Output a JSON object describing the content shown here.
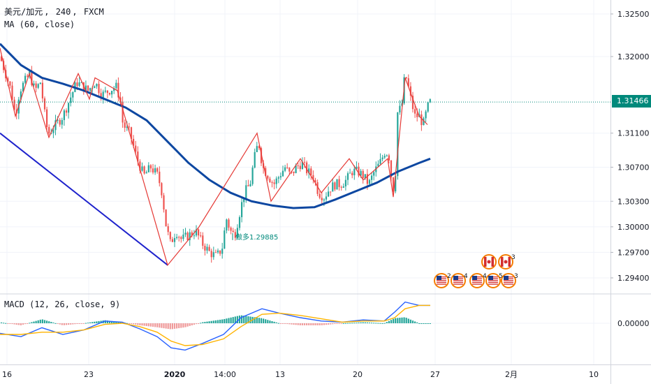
{
  "legend": {
    "symbol": "美元/加元",
    "interval": "240",
    "exchange": "FXCM",
    "ma_label": "MA (60, close)",
    "macd_label": "MACD (12, 26, close, 9)"
  },
  "price_tag": "1.31466",
  "colors": {
    "up": "#26a69a",
    "down": "#ef5350",
    "ma_line": "#0d47a1",
    "zigzag": "#e53935",
    "trendline": "#1e22cc",
    "macd_line": "#2962ff",
    "signal_line": "#ffb300",
    "hist_up": "#26a69a",
    "hist_down": "#ef9a9a",
    "last_price_line": "#00897b"
  },
  "chart_data": [
    {
      "type": "candlestick",
      "panel": "price",
      "y_ticks": [
        "1.32500",
        "1.32000",
        "1.31466",
        "1.31100",
        "1.30700",
        "1.30300",
        "1.30000",
        "1.29700",
        "1.29400"
      ],
      "ylim": [
        1.292,
        1.3275
      ],
      "x_ticks": [
        "16",
        "23",
        "2020",
        "14:00",
        "13",
        "20",
        "27",
        "2月",
        "10"
      ],
      "last_price": 1.31466,
      "annotation": "做多1.29885",
      "annotation_price": 1.29885,
      "close_path": [
        [
          0,
          1.32
        ],
        [
          8,
          1.318
        ],
        [
          16,
          1.316
        ],
        [
          22,
          1.313
        ],
        [
          28,
          1.316
        ],
        [
          35,
          1.317
        ],
        [
          42,
          1.318
        ],
        [
          50,
          1.316
        ],
        [
          58,
          1.317
        ],
        [
          66,
          1.312
        ],
        [
          70,
          1.311
        ],
        [
          80,
          1.312
        ],
        [
          90,
          1.313
        ],
        [
          100,
          1.315
        ],
        [
          110,
          1.317
        ],
        [
          118,
          1.3165
        ],
        [
          126,
          1.316
        ],
        [
          136,
          1.317
        ],
        [
          146,
          1.3155
        ],
        [
          156,
          1.316
        ],
        [
          166,
          1.3165
        ],
        [
          172,
          1.315
        ],
        [
          176,
          1.312
        ],
        [
          186,
          1.311
        ],
        [
          196,
          1.308
        ],
        [
          206,
          1.306
        ],
        [
          216,
          1.307
        ],
        [
          226,
          1.306
        ],
        [
          232,
          1.304
        ],
        [
          238,
          1.3
        ],
        [
          244,
          1.298
        ],
        [
          252,
          1.2995
        ],
        [
          260,
          1.2985
        ],
        [
          270,
          1.299
        ],
        [
          280,
          1.2995
        ],
        [
          290,
          1.298
        ],
        [
          300,
          1.297
        ],
        [
          310,
          1.2965
        ],
        [
          318,
          1.2975
        ],
        [
          324,
          1.301
        ],
        [
          330,
          1.2995
        ],
        [
          336,
          1.299
        ],
        [
          344,
          1.302
        ],
        [
          350,
          1.304
        ],
        [
          358,
          1.305
        ],
        [
          364,
          1.308
        ],
        [
          370,
          1.31
        ],
        [
          376,
          1.307
        ],
        [
          384,
          1.306
        ],
        [
          392,
          1.305
        ],
        [
          400,
          1.306
        ],
        [
          408,
          1.307
        ],
        [
          416,
          1.306
        ],
        [
          424,
          1.307
        ],
        [
          432,
          1.3075
        ],
        [
          440,
          1.3065
        ],
        [
          448,
          1.306
        ],
        [
          456,
          1.304
        ],
        [
          464,
          1.3035
        ],
        [
          472,
          1.3045
        ],
        [
          480,
          1.305
        ],
        [
          488,
          1.305
        ],
        [
          496,
          1.3055
        ],
        [
          504,
          1.3065
        ],
        [
          512,
          1.3065
        ],
        [
          520,
          1.306
        ],
        [
          528,
          1.305
        ],
        [
          536,
          1.3065
        ],
        [
          544,
          1.3075
        ],
        [
          552,
          1.309
        ],
        [
          558,
          1.308
        ],
        [
          562,
          1.304
        ],
        [
          566,
          1.306
        ],
        [
          570,
          1.315
        ],
        [
          574,
          1.313
        ],
        [
          578,
          1.317
        ],
        [
          582,
          1.3175
        ],
        [
          588,
          1.315
        ],
        [
          594,
          1.313
        ],
        [
          600,
          1.313
        ],
        [
          606,
          1.312
        ],
        [
          612,
          1.314
        ],
        [
          616,
          1.31466
        ]
      ],
      "ma_path": [
        [
          0,
          1.3215
        ],
        [
          30,
          1.319
        ],
        [
          60,
          1.3175
        ],
        [
          90,
          1.3168
        ],
        [
          120,
          1.316
        ],
        [
          150,
          1.315
        ],
        [
          180,
          1.314
        ],
        [
          210,
          1.3125
        ],
        [
          240,
          1.31
        ],
        [
          270,
          1.3075
        ],
        [
          300,
          1.3055
        ],
        [
          330,
          1.304
        ],
        [
          360,
          1.303
        ],
        [
          390,
          1.3025
        ],
        [
          420,
          1.3022
        ],
        [
          450,
          1.3023
        ],
        [
          480,
          1.3032
        ],
        [
          510,
          1.3042
        ],
        [
          540,
          1.3052
        ],
        [
          570,
          1.3065
        ],
        [
          600,
          1.3075
        ],
        [
          616,
          1.308
        ]
      ],
      "zigzag_path": [
        [
          0,
          1.321
        ],
        [
          22,
          1.313
        ],
        [
          42,
          1.318
        ],
        [
          70,
          1.3105
        ],
        [
          112,
          1.318
        ],
        [
          128,
          1.315
        ],
        [
          136,
          1.3175
        ],
        [
          168,
          1.316
        ],
        [
          240,
          1.2955
        ],
        [
          285,
          1.3
        ],
        [
          368,
          1.311
        ],
        [
          388,
          1.303
        ],
        [
          430,
          1.308
        ],
        [
          460,
          1.304
        ],
        [
          500,
          1.308
        ],
        [
          520,
          1.3055
        ],
        [
          555,
          1.308
        ],
        [
          563,
          1.3035
        ],
        [
          580,
          1.3175
        ],
        [
          600,
          1.313
        ],
        [
          612,
          1.312
        ]
      ],
      "trendline": [
        [
          0,
          1.311
        ],
        [
          240,
          1.2955
        ]
      ]
    },
    {
      "type": "histogram+line",
      "panel": "macd",
      "title": "MACD (12, 26, close, 9)",
      "y_ticks": [
        "0.00000"
      ],
      "ylim": [
        -0.003,
        0.003
      ],
      "macd_path": [
        [
          0,
          -0.0009
        ],
        [
          30,
          -0.0012
        ],
        [
          60,
          -0.0004
        ],
        [
          90,
          -0.001
        ],
        [
          120,
          -0.0006
        ],
        [
          150,
          0.0002
        ],
        [
          175,
          0.0001
        ],
        [
          200,
          -0.0005
        ],
        [
          225,
          -0.0012
        ],
        [
          245,
          -0.0022
        ],
        [
          265,
          -0.0024
        ],
        [
          290,
          -0.0018
        ],
        [
          320,
          -0.001
        ],
        [
          345,
          0.0005
        ],
        [
          375,
          0.0013
        ],
        [
          400,
          0.0009
        ],
        [
          430,
          0.0005
        ],
        [
          460,
          0.0002
        ],
        [
          490,
          0.0001
        ],
        [
          520,
          0.0003
        ],
        [
          550,
          0.0002
        ],
        [
          565,
          0.001
        ],
        [
          580,
          0.0019
        ],
        [
          600,
          0.0016
        ],
        [
          616,
          0.0016
        ]
      ],
      "signal_path": [
        [
          0,
          -0.001
        ],
        [
          30,
          -0.001
        ],
        [
          60,
          -0.0008
        ],
        [
          90,
          -0.0008
        ],
        [
          120,
          -0.0006
        ],
        [
          150,
          -0.0001
        ],
        [
          175,
          0.0
        ],
        [
          200,
          -0.0003
        ],
        [
          225,
          -0.0008
        ],
        [
          245,
          -0.0016
        ],
        [
          265,
          -0.002
        ],
        [
          290,
          -0.0019
        ],
        [
          320,
          -0.0014
        ],
        [
          345,
          -0.0003
        ],
        [
          375,
          0.0008
        ],
        [
          400,
          0.0009
        ],
        [
          430,
          0.0007
        ],
        [
          460,
          0.0004
        ],
        [
          490,
          0.0001
        ],
        [
          520,
          0.0002
        ],
        [
          550,
          0.0002
        ],
        [
          565,
          0.0005
        ],
        [
          580,
          0.0013
        ],
        [
          600,
          0.0016
        ],
        [
          616,
          0.0016
        ]
      ]
    }
  ],
  "events": [
    {
      "flag": "us",
      "count": "2"
    },
    {
      "flag": "us",
      "count": "4"
    },
    {
      "flag": "us",
      "count": "4"
    },
    {
      "flag": "us",
      "count": "5"
    },
    {
      "flag": "us",
      "count": "3"
    },
    {
      "flag": "ca",
      "count": ""
    },
    {
      "flag": "ca",
      "count": "3"
    }
  ]
}
